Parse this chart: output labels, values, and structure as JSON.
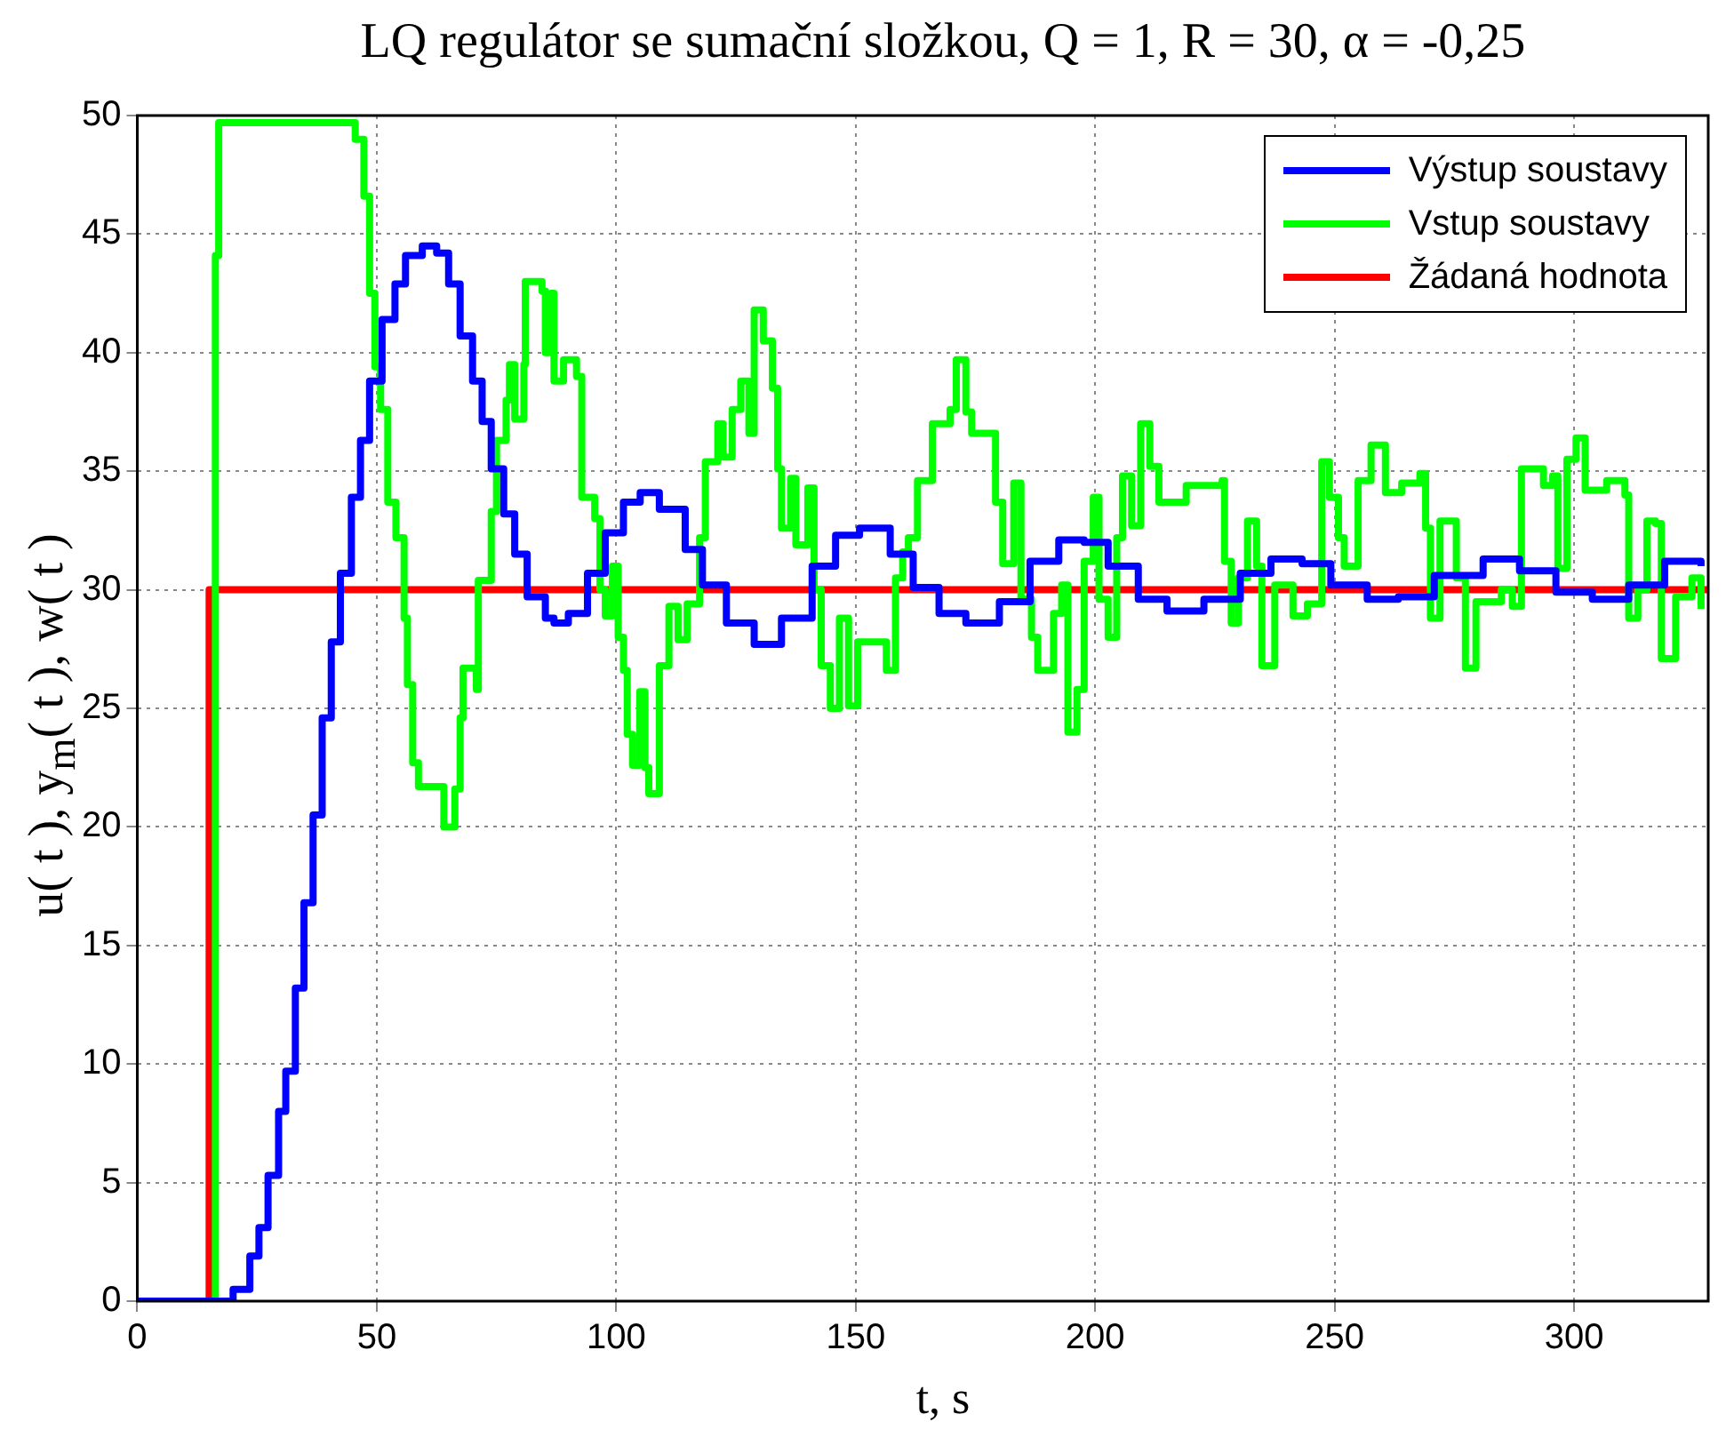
{
  "chart_data": {
    "type": "step",
    "title": "LQ regulátor se sumační složkou, Q = 1, R = 30, α = -0,25",
    "xlabel": "t, s",
    "ylabel": "u( t ), y$_{m}$( t ), w( t )",
    "xlim": [
      0,
      328
    ],
    "xticks": [
      0,
      50,
      100,
      150,
      200,
      250,
      300
    ],
    "ylim": [
      0,
      50
    ],
    "yticks": [
      0,
      5,
      10,
      15,
      20,
      25,
      30,
      35,
      40,
      45,
      50
    ],
    "grid": true,
    "legend": "top right",
    "series": [
      {
        "name": "Výstup soustavy",
        "color": "#0000ff",
        "x": [
          0,
          20,
          23.5,
          25.4,
          27.3,
          29.5,
          31,
          33,
          34.8,
          36.7,
          38.6,
          40.5,
          42.4,
          44.7,
          46.6,
          48.5,
          51.1,
          53.8,
          56,
          59.5,
          62.5,
          65,
          67.4,
          70,
          72,
          73.9,
          76.5,
          78.8,
          81.4,
          85.2,
          87,
          90,
          94,
          97.7,
          101.5,
          105,
          109,
          114.4,
          118,
          123,
          128.8,
          134.5,
          140.9,
          145.8,
          150.8,
          157.2,
          162,
          167.4,
          173,
          180,
          186.4,
          192.4,
          197.7,
          202.7,
          209,
          215,
          222.7,
          230.3,
          236.7,
          243.2,
          249.2,
          256.8,
          263.3,
          270.8,
          281,
          288.6,
          296.2,
          303.8,
          311.4,
          318.9,
          326.5
        ],
        "values": [
          0,
          0.5,
          1.9,
          3.1,
          5.3,
          8,
          9.7,
          13.2,
          16.8,
          20.5,
          24.6,
          27.8,
          30.7,
          33.9,
          36.3,
          38.8,
          41.4,
          42.9,
          44.1,
          44.5,
          44.2,
          42.9,
          40.7,
          38.8,
          37.1,
          35.1,
          33.2,
          31.5,
          29.7,
          28.8,
          28.6,
          29,
          30.7,
          32.4,
          33.7,
          34.1,
          33.4,
          31.7,
          30.2,
          28.6,
          27.7,
          28.8,
          31,
          32.3,
          32.6,
          31.5,
          30.1,
          29,
          28.6,
          29.5,
          31.2,
          32.1,
          32,
          31,
          29.6,
          29.1,
          29.6,
          30.7,
          31.3,
          31.1,
          30.2,
          29.6,
          29.7,
          30.6,
          31.3,
          30.8,
          29.9,
          29.6,
          30.2,
          31.2,
          31
        ]
      },
      {
        "name": "Vstup soustavy",
        "color": "#00ff00",
        "x": [
          0,
          16.3,
          17,
          45.5,
          47.3,
          48.5,
          49.6,
          50.8,
          52.3,
          54,
          55.7,
          56.4,
          57.5,
          58.7,
          64,
          66.3,
          67.4,
          68,
          70.8,
          71.2,
          73.9,
          75,
          77,
          77.7,
          78.8,
          80.7,
          81,
          84.5,
          85.2,
          86.4,
          87,
          89,
          91.7,
          92.8,
          95.5,
          96.6,
          97.7,
          99.2,
          100.4,
          101.5,
          102.3,
          103.4,
          104.9,
          106,
          106.8,
          109,
          111,
          112.9,
          114.8,
          117.4,
          118.6,
          121.2,
          122.3,
          124.2,
          126,
          127.7,
          128.8,
          130.7,
          132.6,
          133.7,
          134.5,
          136.4,
          137.5,
          140,
          141.3,
          142.8,
          144.7,
          146.6,
          148.5,
          150.4,
          154,
          156.4,
          158.3,
          159.8,
          161,
          162.9,
          166,
          169.7,
          171,
          173,
          174.2,
          179.2,
          180.7,
          183,
          184.5,
          186.7,
          188,
          191.3,
          193,
          194.3,
          196.2,
          197.7,
          199.6,
          200.8,
          202.7,
          204.5,
          205.7,
          207.6,
          209.5,
          211.4,
          213.3,
          215,
          219,
          226.5,
          227,
          228.4,
          229.9,
          231.8,
          233.7,
          234.8,
          237.5,
          241.3,
          244.3,
          247.3,
          248.9,
          250.8,
          252,
          254.9,
          257.6,
          260.6,
          264,
          267.8,
          269,
          270,
          272,
          273.5,
          275.4,
          277.3,
          279.5,
          284.8,
          287.1,
          289,
          293.6,
          295.5,
          296.6,
          298.5,
          300.4,
          302.3,
          306.8,
          310.6,
          311.4,
          313.3,
          315.2,
          317,
          318.2,
          321.2,
          324.6,
          326.5
        ],
        "values": [
          0,
          44.1,
          49.7,
          49,
          46.6,
          42.5,
          39.4,
          37.6,
          33.7,
          32.2,
          28.8,
          26,
          22.7,
          21.7,
          20,
          21.6,
          24.6,
          26.7,
          25.8,
          30.4,
          33.3,
          36.3,
          38,
          39.5,
          37.2,
          39.5,
          43,
          42.6,
          40,
          42.5,
          38.8,
          39.7,
          39,
          33.9,
          33,
          30,
          28.9,
          31,
          28,
          26.6,
          23.9,
          22.6,
          25.7,
          22.5,
          21.4,
          26.8,
          29.3,
          27.9,
          29.4,
          32.2,
          35.4,
          37,
          35.6,
          37.6,
          38.8,
          36.6,
          41.8,
          40.5,
          38.5,
          35.1,
          32.6,
          34.7,
          31.9,
          34.3,
          30,
          26.8,
          25,
          28.8,
          25.1,
          27.8,
          27.8,
          26.6,
          30.5,
          31.6,
          32.2,
          34.6,
          37,
          37.6,
          39.7,
          37.5,
          36.6,
          33.7,
          31.1,
          34.5,
          29.6,
          28,
          26.6,
          29,
          30.2,
          24,
          25.8,
          31.2,
          33.9,
          29.6,
          28,
          32.2,
          34.8,
          32.7,
          37,
          35.2,
          33.7,
          33.7,
          34.4,
          34.6,
          31.2,
          28.6,
          30.5,
          32.9,
          31,
          26.8,
          30.2,
          28.9,
          29.4,
          35.4,
          33.9,
          32.2,
          31,
          34.6,
          36.1,
          34.1,
          34.5,
          34.9,
          32.6,
          28.8,
          32.9,
          32.9,
          30.5,
          26.7,
          29.5,
          30,
          29.3,
          35.1,
          34.4,
          34.8,
          30.9,
          35.5,
          36.4,
          34.2,
          34.6,
          34,
          28.8,
          30,
          32.9,
          32.8,
          27.1,
          29.7,
          30.5,
          29.2
        ]
      },
      {
        "name": "Žádaná hodnota",
        "color": "#ff0000",
        "x": [
          0,
          15,
          328
        ],
        "values": [
          0,
          30,
          30
        ]
      }
    ]
  }
}
